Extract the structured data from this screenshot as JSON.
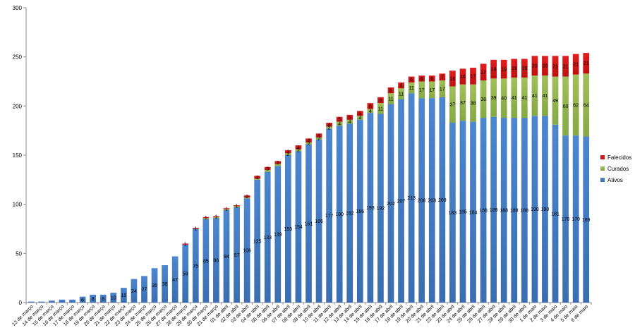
{
  "chart_data": {
    "type": "bar",
    "stacked": true,
    "ylim": [
      0,
      300
    ],
    "yticks": [
      0,
      50,
      100,
      150,
      200,
      250,
      300
    ],
    "grid": false,
    "legend_position": "right",
    "categories": [
      "13 de março",
      "14 de março",
      "15 de março",
      "16 de março",
      "17 de março",
      "18 de março",
      "19 de março",
      "20 de março",
      "21 de março",
      "22 de março",
      "23 de março",
      "24 de março",
      "25 de março",
      "26 de março",
      "27 de março",
      "28 de março",
      "29 de março",
      "30 de março",
      "31 de março",
      "01 de abril",
      "02 de abril",
      "03 de abril",
      "04 de abril",
      "05 de abril",
      "06 de abril",
      "07 de abril",
      "08 de abril",
      "09 de abril",
      "10 de abril",
      "11 de abril",
      "12 de abril",
      "13 de abril",
      "14 de abril",
      "15 de abril",
      "16 de abril",
      "17 de abril",
      "18 de abril",
      "19 de abril",
      "20 de abril",
      "21 de abril",
      "22 de abril",
      "23 de abril",
      "24 de abril",
      "25 de abril",
      "26 de abril",
      "27 de abril",
      "28 de abril",
      "29 de abril",
      "30 de abril",
      "1 de maio",
      "2 de maio",
      "3 de maio",
      "4 de maio",
      "5 de maio",
      "6 de maio"
    ],
    "series": [
      {
        "name": "Ativos",
        "color": "#4a7ebb",
        "values": [
          1,
          1,
          2,
          3,
          3,
          6,
          8,
          8,
          10,
          15,
          24,
          27,
          35,
          38,
          47,
          59,
          75,
          85,
          86,
          94,
          97,
          106,
          125,
          133,
          139,
          150,
          154,
          161,
          166,
          177,
          180,
          182,
          186,
          193,
          192,
          202,
          207,
          213,
          208,
          208,
          209,
          183,
          185,
          184,
          188,
          189,
          188,
          188,
          188,
          190,
          190,
          181,
          170,
          170,
          169
        ],
        "labels": [
          "",
          "",
          "",
          "",
          "",
          "6",
          "8",
          "8",
          "10",
          "15",
          "24",
          "27",
          "35",
          "38",
          "47",
          "59",
          "75",
          "85",
          "86",
          "94",
          "97",
          "106",
          "125",
          "133",
          "139",
          "150",
          "154",
          "161",
          "166",
          "177",
          "180",
          "182",
          "186",
          "193",
          "192",
          "202",
          "207",
          "213",
          "208",
          "208",
          "209",
          "183",
          "185",
          "184",
          "188",
          "189",
          "188",
          "188",
          "188",
          "190",
          "190",
          "181",
          "170",
          "170",
          "169"
        ]
      },
      {
        "name": "Curados",
        "color": "#98b954",
        "values": [
          0,
          0,
          0,
          0,
          0,
          0,
          0,
          0,
          0,
          0,
          0,
          0,
          0,
          0,
          0,
          0,
          0,
          1,
          1,
          1,
          1,
          1,
          1,
          2,
          2,
          2,
          2,
          2,
          2,
          2,
          4,
          4,
          4,
          4,
          11,
          11,
          11,
          11,
          17,
          17,
          17,
          37,
          37,
          38,
          38,
          39,
          40,
          41,
          41,
          41,
          41,
          49,
          60,
          62,
          64
        ],
        "labels": [
          "",
          "",
          "",
          "",
          "",
          "",
          "",
          "",
          "",
          "",
          "",
          "",
          "",
          "",
          "",
          "",
          "",
          "",
          "",
          "",
          "",
          "",
          "",
          "",
          "",
          "2",
          "2",
          "2",
          "2",
          "2",
          "4",
          "4",
          "4",
          "4",
          "11",
          "11",
          "11",
          "11",
          "17",
          "17",
          "17",
          "37",
          "37",
          "38",
          "38",
          "39",
          "40",
          "41",
          "41",
          "41",
          "41",
          "49",
          "60",
          "62",
          "64"
        ]
      },
      {
        "name": "Falecidos",
        "color": "#be4b48",
        "values": [
          0,
          0,
          0,
          0,
          0,
          0,
          0,
          0,
          0,
          0,
          0,
          0,
          0,
          0,
          0,
          1,
          1,
          1,
          1,
          1,
          1,
          2,
          3,
          3,
          3,
          3,
          4,
          4,
          4,
          4,
          5,
          5,
          5,
          6,
          6,
          6,
          6,
          6,
          6,
          6,
          7,
          16,
          16,
          17,
          17,
          19,
          19,
          19,
          19,
          20,
          20,
          21,
          21,
          21,
          21
        ],
        "labels": [
          "",
          "",
          "",
          "",
          "",
          "",
          "",
          "",
          "",
          "",
          "",
          "",
          "",
          "",
          "",
          "1",
          "1",
          "1",
          "1",
          "1",
          "1",
          "2",
          "3",
          "3",
          "3",
          "3",
          "4",
          "4",
          "4",
          "4",
          "5",
          "5",
          "5",
          "6",
          "6",
          "6",
          "6",
          "6",
          "6",
          "6",
          "7",
          "16",
          "16",
          "17",
          "17",
          "19",
          "19",
          "19",
          "19",
          "20",
          "20",
          "21",
          "21",
          "21",
          "21"
        ]
      }
    ]
  }
}
